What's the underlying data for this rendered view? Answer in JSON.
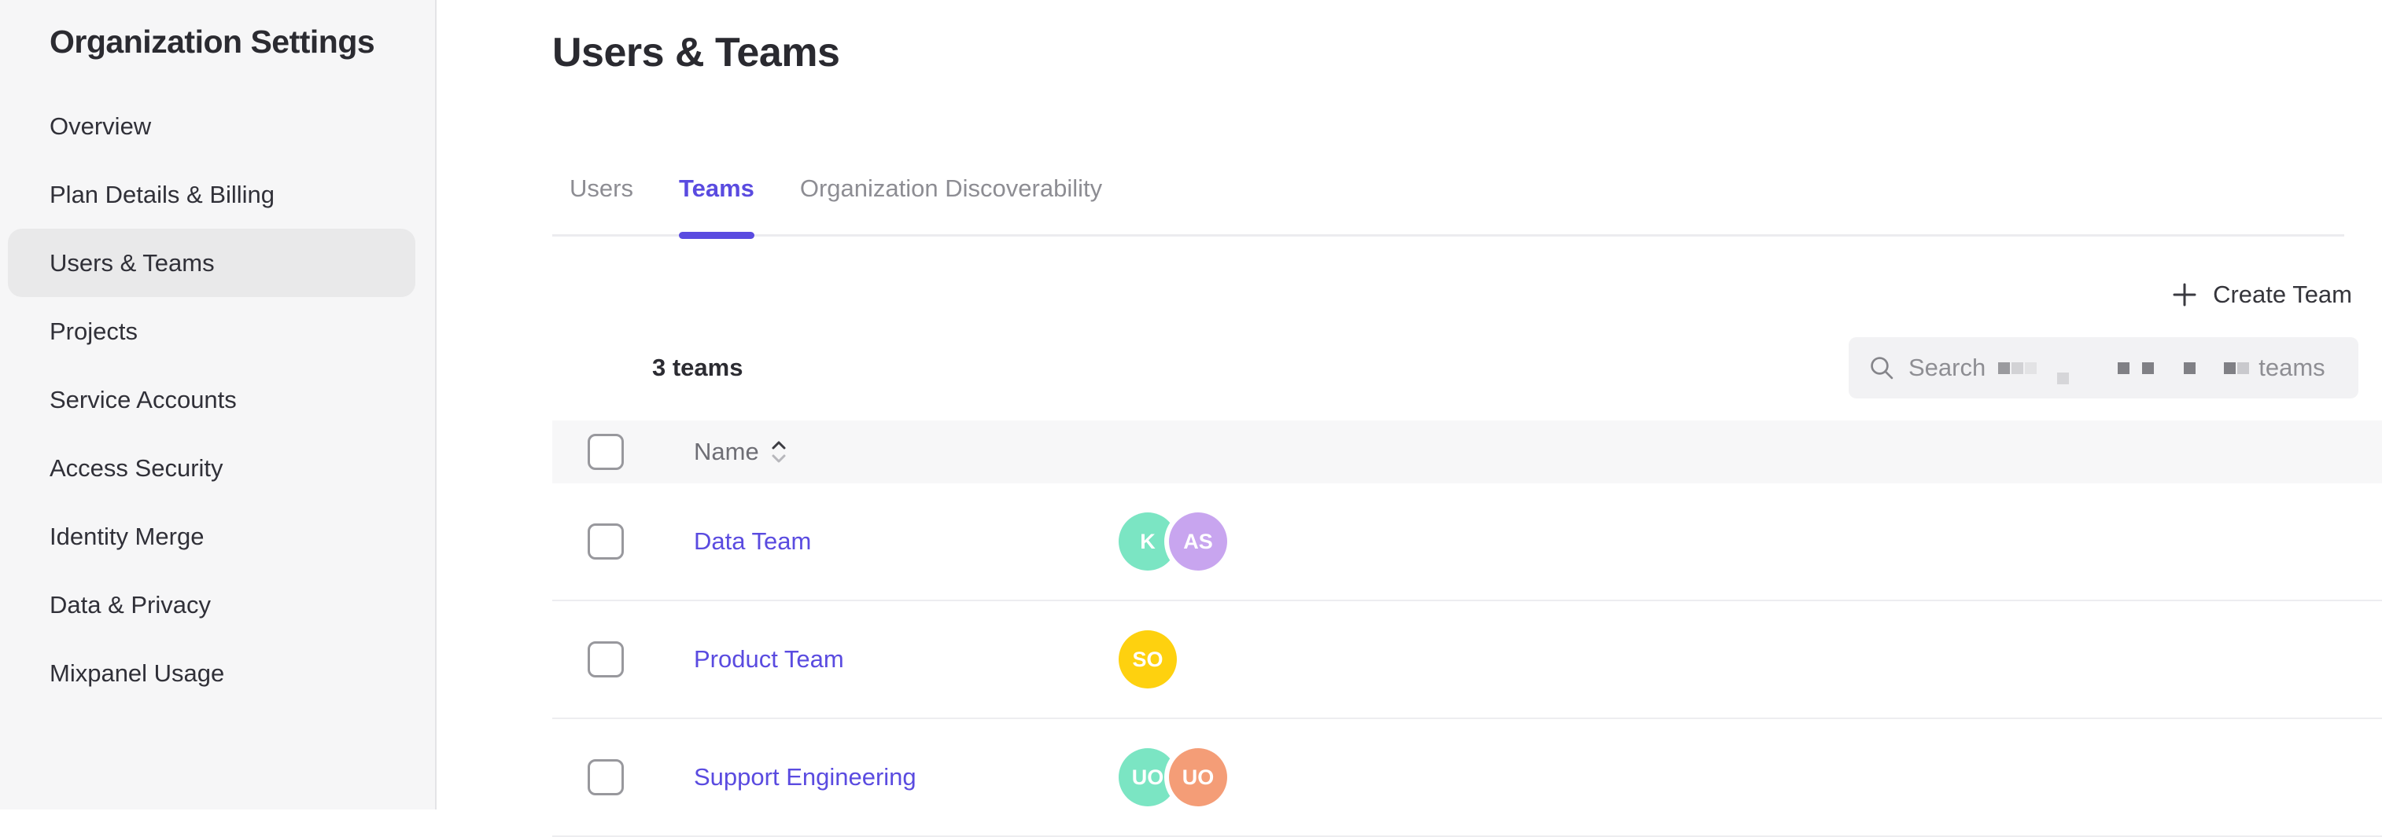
{
  "colors": {
    "accent_purple": "#5a4be0",
    "sidebar_selected_bg": "#e9e9ea",
    "avatar_ring": "#ffffff"
  },
  "sidebar": {
    "title": "Organization Settings",
    "items": [
      {
        "label": "Overview",
        "selected": false
      },
      {
        "label": "Plan Details & Billing",
        "selected": false
      },
      {
        "label": "Users & Teams",
        "selected": true
      },
      {
        "label": "Projects",
        "selected": false
      },
      {
        "label": "Service Accounts",
        "selected": false
      },
      {
        "label": "Access Security",
        "selected": false
      },
      {
        "label": "Identity Merge",
        "selected": false
      },
      {
        "label": "Data & Privacy",
        "selected": false
      },
      {
        "label": "Mixpanel Usage",
        "selected": false
      }
    ]
  },
  "main": {
    "title": "Users & Teams",
    "tabs": [
      {
        "label": "Users",
        "active": false
      },
      {
        "label": "Teams",
        "active": true
      },
      {
        "label": "Organization Discoverability",
        "active": false
      }
    ],
    "toolbar": {
      "plus_icon": "+",
      "create_team_label": "Create Team"
    },
    "list_header": {
      "count": "3 teams"
    },
    "search": {
      "icon": "search-icon",
      "tokens": [
        {
          "t": "text",
          "v": "Search"
        },
        {
          "t": "block",
          "c": "#9a9a9e",
          "gap": 16
        },
        {
          "t": "block",
          "c": "#d2d2d5",
          "gap": 2
        },
        {
          "t": "block",
          "c": "#e3e3e5",
          "gap": 2
        },
        {
          "t": "block",
          "c": "#d6d6d9",
          "gap": 26,
          "drop": true
        },
        {
          "t": "block",
          "c": "#808085",
          "gap": 62
        },
        {
          "t": "block",
          "c": "#808085",
          "gap": 16
        },
        {
          "t": "block",
          "c": "#808085",
          "gap": 38
        },
        {
          "t": "block",
          "c": "#808085",
          "gap": 36
        },
        {
          "t": "block",
          "c": "#c9c9cd",
          "gap": 2
        },
        {
          "t": "text",
          "v": "teams",
          "gap": 12
        }
      ]
    },
    "table": {
      "columns": [
        {
          "label": "Name",
          "sortable": true
        }
      ],
      "rows": [
        {
          "name": "Data Team",
          "avatars": [
            {
              "initials": "K",
              "color": "#7be5c3"
            },
            {
              "initials": "AS",
              "color": "#c8a5ef"
            }
          ]
        },
        {
          "name": "Product Team",
          "avatars": [
            {
              "initials": "SO",
              "color": "#fed10f"
            }
          ]
        },
        {
          "name": "Support Engineering",
          "avatars": [
            {
              "initials": "UO",
              "color": "#7be5c3"
            },
            {
              "initials": "UO",
              "color": "#f49d77"
            }
          ]
        }
      ]
    }
  }
}
